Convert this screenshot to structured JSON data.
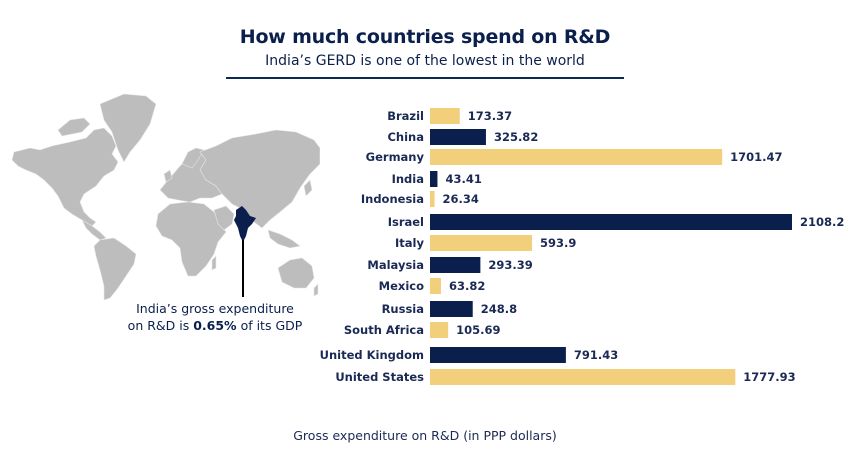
{
  "header": {
    "title": "How much countries spend on R&D",
    "subtitle": "India’s GERD is one of the lowest in the world"
  },
  "map": {
    "highlight_country": "India",
    "callout_line1": "India’s gross expenditure",
    "callout_line2_prefix": "on R&D is ",
    "callout_value": "0.65%",
    "callout_line2_suffix": " of its GDP"
  },
  "colors": {
    "navy": "#0b1f4d",
    "yellow": "#f2cf7a",
    "land": "#bdbdbd",
    "text": "#1b2a55"
  },
  "chart_data": {
    "type": "bar",
    "orientation": "horizontal",
    "title": "How much countries spend on R&D",
    "subtitle": "India’s GERD is one of the lowest in the world",
    "xlabel": "Gross expenditure on R&D (in PPP dollars)",
    "ylabel": "",
    "categories": [
      "Brazil",
      "China",
      "Germany",
      "India",
      "Indonesia",
      "Israel",
      "Italy",
      "Malaysia",
      "Mexico",
      "Russia",
      "South Africa",
      "United Kingdom",
      "United States"
    ],
    "values": [
      173.37,
      325.82,
      1701.47,
      43.41,
      26.34,
      2108.2,
      593.9,
      293.39,
      63.82,
      248.8,
      105.69,
      791.43,
      1777.93
    ],
    "value_labels": [
      "173.37",
      "325.82",
      "1701.47",
      "43.41",
      "26.34",
      "2108.2",
      "593.9",
      "293.39",
      "63.82",
      "248.8",
      "105.69",
      "791.43",
      "1777.93"
    ],
    "bar_colors": [
      "yellow",
      "navy",
      "yellow",
      "navy",
      "yellow",
      "navy",
      "yellow",
      "navy",
      "yellow",
      "navy",
      "yellow",
      "navy",
      "yellow"
    ],
    "xlim": [
      0,
      2108.2
    ],
    "grid": false,
    "legend": "none"
  }
}
